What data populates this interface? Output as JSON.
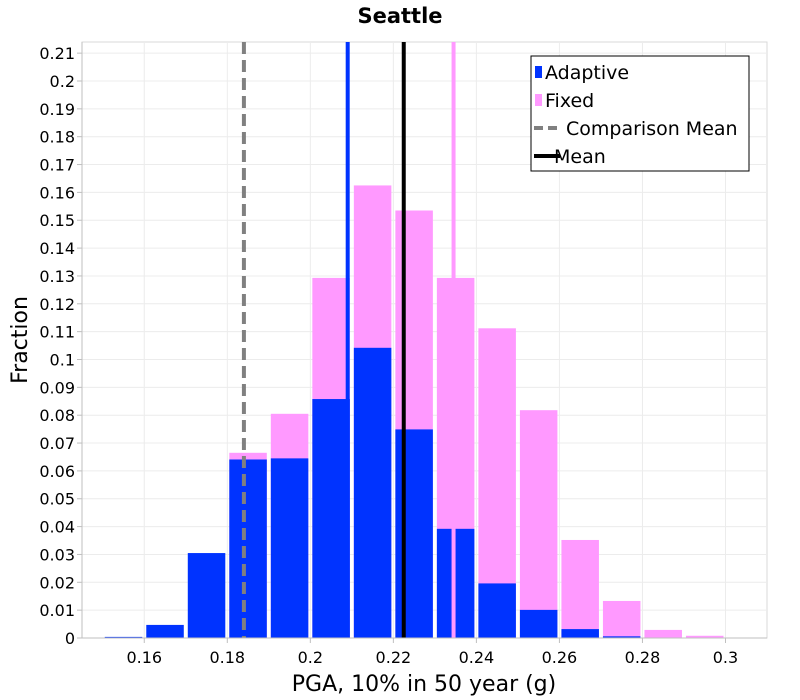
{
  "chart_data": {
    "type": "bar",
    "title": "Seattle",
    "xlabel": "PGA, 10% in 50 year (g)",
    "ylabel": "Fraction",
    "xlim": [
      0.145,
      0.31
    ],
    "ylim": [
      0,
      0.214
    ],
    "bin_width": 0.01,
    "x_ticks": [
      0.16,
      0.18,
      0.2,
      0.22,
      0.24,
      0.26,
      0.28,
      0.3
    ],
    "x_tick_labels": [
      "0.16",
      "0.18",
      "0.2",
      "0.22",
      "0.24",
      "0.26",
      "0.28",
      "0.3"
    ],
    "y_ticks": [
      0,
      0.01,
      0.02,
      0.03,
      0.04,
      0.05,
      0.06,
      0.07,
      0.08,
      0.09,
      0.1,
      0.11,
      0.12,
      0.13,
      0.14,
      0.15,
      0.16,
      0.17,
      0.18,
      0.19,
      0.2,
      0.21
    ],
    "y_tick_labels": [
      "0",
      "0.01",
      "0.02",
      "0.03",
      "0.04",
      "0.05",
      "0.06",
      "0.07",
      "0.08",
      "0.09",
      "0.1",
      "0.11",
      "0.12",
      "0.13",
      "0.14",
      "0.15",
      "0.16",
      "0.17",
      "0.18",
      "0.19",
      "0.2",
      "0.21"
    ],
    "grid": true,
    "legend_position": "top-right",
    "series": [
      {
        "name": "Fixed",
        "color": "#ff99ff",
        "bin_centers": [
          0.155,
          0.165,
          0.175,
          0.185,
          0.195,
          0.205,
          0.215,
          0.225,
          0.235,
          0.245,
          0.255,
          0.265,
          0.275,
          0.285,
          0.295
        ],
        "values": [
          0.0,
          0.0,
          0.0,
          0.0665,
          0.0805,
          0.1293,
          0.1625,
          0.1535,
          0.1293,
          0.1112,
          0.0818,
          0.0352,
          0.0133,
          0.0029,
          0.0008
        ]
      },
      {
        "name": "Adaptive",
        "color": "#0033ff",
        "bin_centers": [
          0.155,
          0.165,
          0.175,
          0.185,
          0.195,
          0.205,
          0.215,
          0.225,
          0.235,
          0.245,
          0.255,
          0.265,
          0.275,
          0.285,
          0.295
        ],
        "values": [
          0.0004,
          0.0047,
          0.0305,
          0.0641,
          0.0645,
          0.0858,
          0.1042,
          0.0749,
          0.0392,
          0.0196,
          0.0101,
          0.0032,
          0.0006,
          0.0001,
          0.0
        ]
      }
    ],
    "vertical_lines": [
      {
        "name": "Comparison Mean",
        "x": 0.184,
        "color": "#808080",
        "style": "dashed"
      },
      {
        "name": "Mean",
        "x": 0.2225,
        "color": "#000000",
        "style": "solid"
      },
      {
        "name": "",
        "x": 0.209,
        "color": "#0033ff",
        "style": "solid"
      },
      {
        "name": "",
        "x": 0.2345,
        "color": "#ff99ff",
        "style": "solid"
      }
    ],
    "legend": [
      {
        "label": "Adaptive",
        "kind": "box",
        "color": "#0033ff"
      },
      {
        "label": "Fixed",
        "kind": "box",
        "color": "#ff99ff"
      },
      {
        "label": "Comparison Mean",
        "kind": "dashed",
        "color": "#808080"
      },
      {
        "label": "Mean",
        "kind": "solid",
        "color": "#000000"
      }
    ]
  }
}
